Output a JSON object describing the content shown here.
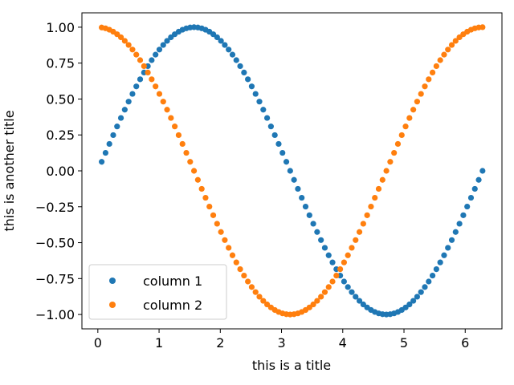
{
  "chart_data": {
    "type": "scatter",
    "title": "",
    "xlabel": "this is a title",
    "ylabel": "this is another title",
    "xlim": [
      -0.26,
      6.6
    ],
    "ylim": [
      -1.1,
      1.1
    ],
    "xticks": [
      "0",
      "1",
      "2",
      "3",
      "4",
      "5",
      "6"
    ],
    "yticks": [
      "1.00",
      "0.75",
      "0.50",
      "0.25",
      "0.00",
      "−0.25",
      "−0.50",
      "−0.75",
      "−1.00"
    ],
    "grid": false,
    "legend_position": "lower-left",
    "series": [
      {
        "name": "column 1",
        "color": "#1f77b4",
        "x": [
          0.0628,
          0.1257,
          0.1885,
          0.2513,
          0.3142,
          0.377,
          0.4398,
          0.5027,
          0.5655,
          0.6283,
          0.6912,
          0.754,
          0.8168,
          0.8796,
          0.9425,
          1.0053,
          1.0681,
          1.131,
          1.1938,
          1.2566,
          1.3195,
          1.3823,
          1.4451,
          1.508,
          1.5708,
          1.6336,
          1.6965,
          1.7593,
          1.8221,
          1.885,
          1.9478,
          2.0106,
          2.0735,
          2.1363,
          2.1991,
          2.2619,
          2.3248,
          2.3876,
          2.4504,
          2.5133,
          2.5761,
          2.6389,
          2.7018,
          2.7646,
          2.8274,
          2.8903,
          2.9531,
          3.0159,
          3.0788,
          3.1416,
          3.2044,
          3.2673,
          3.3301,
          3.3929,
          3.4558,
          3.5186,
          3.5814,
          3.6442,
          3.7071,
          3.7699,
          3.8327,
          3.8956,
          3.9584,
          4.0212,
          4.0841,
          4.1469,
          4.2097,
          4.2726,
          4.3354,
          4.3982,
          4.4611,
          4.5239,
          4.5867,
          4.6496,
          4.7124,
          4.7752,
          4.8381,
          4.9009,
          4.9637,
          5.0265,
          5.0894,
          5.1522,
          5.215,
          5.2779,
          5.3407,
          5.4035,
          5.4664,
          5.5292,
          5.592,
          5.6549,
          5.7177,
          5.7805,
          5.8434,
          5.9062,
          5.969,
          6.0319,
          6.0947,
          6.1575,
          6.2204,
          6.2832
        ],
        "y": [
          0.0628,
          0.1253,
          0.1874,
          0.2487,
          0.309,
          0.3681,
          0.4258,
          0.4818,
          0.5358,
          0.5878,
          0.6374,
          0.6845,
          0.729,
          0.7705,
          0.809,
          0.8443,
          0.8763,
          0.9048,
          0.9298,
          0.9511,
          0.9686,
          0.9823,
          0.9921,
          0.998,
          1.0,
          0.998,
          0.9921,
          0.9823,
          0.9686,
          0.9511,
          0.9298,
          0.9048,
          0.8763,
          0.8443,
          0.809,
          0.7705,
          0.729,
          0.6845,
          0.6374,
          0.5878,
          0.5358,
          0.4818,
          0.4258,
          0.3681,
          0.309,
          0.2487,
          0.1874,
          0.1253,
          0.0628,
          0.0,
          -0.0628,
          -0.1253,
          -0.1874,
          -0.2487,
          -0.309,
          -0.3681,
          -0.4258,
          -0.4818,
          -0.5358,
          -0.5878,
          -0.6374,
          -0.6845,
          -0.729,
          -0.7705,
          -0.809,
          -0.8443,
          -0.8763,
          -0.9048,
          -0.9298,
          -0.9511,
          -0.9686,
          -0.9823,
          -0.9921,
          -0.998,
          -1.0,
          -0.998,
          -0.9921,
          -0.9823,
          -0.9686,
          -0.9511,
          -0.9298,
          -0.9048,
          -0.8763,
          -0.8443,
          -0.809,
          -0.7705,
          -0.729,
          -0.6845,
          -0.6374,
          -0.5878,
          -0.5358,
          -0.4818,
          -0.4258,
          -0.3681,
          -0.309,
          -0.2487,
          -0.1874,
          -0.1253,
          -0.0628,
          0.0
        ]
      },
      {
        "name": "column 2",
        "color": "#ff7f0e",
        "x": [
          0.0628,
          0.1257,
          0.1885,
          0.2513,
          0.3142,
          0.377,
          0.4398,
          0.5027,
          0.5655,
          0.6283,
          0.6912,
          0.754,
          0.8168,
          0.8796,
          0.9425,
          1.0053,
          1.0681,
          1.131,
          1.1938,
          1.2566,
          1.3195,
          1.3823,
          1.4451,
          1.508,
          1.5708,
          1.6336,
          1.6965,
          1.7593,
          1.8221,
          1.885,
          1.9478,
          2.0106,
          2.0735,
          2.1363,
          2.1991,
          2.2619,
          2.3248,
          2.3876,
          2.4504,
          2.5133,
          2.5761,
          2.6389,
          2.7018,
          2.7646,
          2.8274,
          2.8903,
          2.9531,
          3.0159,
          3.0788,
          3.1416,
          3.2044,
          3.2673,
          3.3301,
          3.3929,
          3.4558,
          3.5186,
          3.5814,
          3.6442,
          3.7071,
          3.7699,
          3.8327,
          3.8956,
          3.9584,
          4.0212,
          4.0841,
          4.1469,
          4.2097,
          4.2726,
          4.3354,
          4.3982,
          4.4611,
          4.5239,
          4.5867,
          4.6496,
          4.7124,
          4.7752,
          4.8381,
          4.9009,
          4.9637,
          5.0265,
          5.0894,
          5.1522,
          5.215,
          5.2779,
          5.3407,
          5.4035,
          5.4664,
          5.5292,
          5.592,
          5.6549,
          5.7177,
          5.7805,
          5.8434,
          5.9062,
          5.969,
          6.0319,
          6.0947,
          6.1575,
          6.2204,
          6.2832
        ],
        "y": [
          0.998,
          0.9921,
          0.9823,
          0.9686,
          0.9511,
          0.9298,
          0.9048,
          0.8763,
          0.8443,
          0.809,
          0.7705,
          0.729,
          0.6845,
          0.6374,
          0.5878,
          0.5358,
          0.4818,
          0.4258,
          0.3681,
          0.309,
          0.2487,
          0.1874,
          0.1253,
          0.0628,
          0.0,
          -0.0628,
          -0.1253,
          -0.1874,
          -0.2487,
          -0.309,
          -0.3681,
          -0.4258,
          -0.4818,
          -0.5358,
          -0.5878,
          -0.6374,
          -0.6845,
          -0.729,
          -0.7705,
          -0.809,
          -0.8443,
          -0.8763,
          -0.9048,
          -0.9298,
          -0.9511,
          -0.9686,
          -0.9823,
          -0.9921,
          -0.998,
          -1.0,
          -0.998,
          -0.9921,
          -0.9823,
          -0.9686,
          -0.9511,
          -0.9298,
          -0.9048,
          -0.8763,
          -0.8443,
          -0.809,
          -0.7705,
          -0.729,
          -0.6845,
          -0.6374,
          -0.5878,
          -0.5358,
          -0.4818,
          -0.4258,
          -0.3681,
          -0.309,
          -0.2487,
          -0.1874,
          -0.1253,
          -0.0628,
          0.0,
          0.0628,
          0.1253,
          0.1874,
          0.2487,
          0.309,
          0.3681,
          0.4258,
          0.4818,
          0.5358,
          0.5878,
          0.6374,
          0.6845,
          0.729,
          0.7705,
          0.809,
          0.8443,
          0.8763,
          0.9048,
          0.9298,
          0.9511,
          0.9686,
          0.9823,
          0.9921,
          0.998,
          1.0
        ]
      }
    ]
  }
}
